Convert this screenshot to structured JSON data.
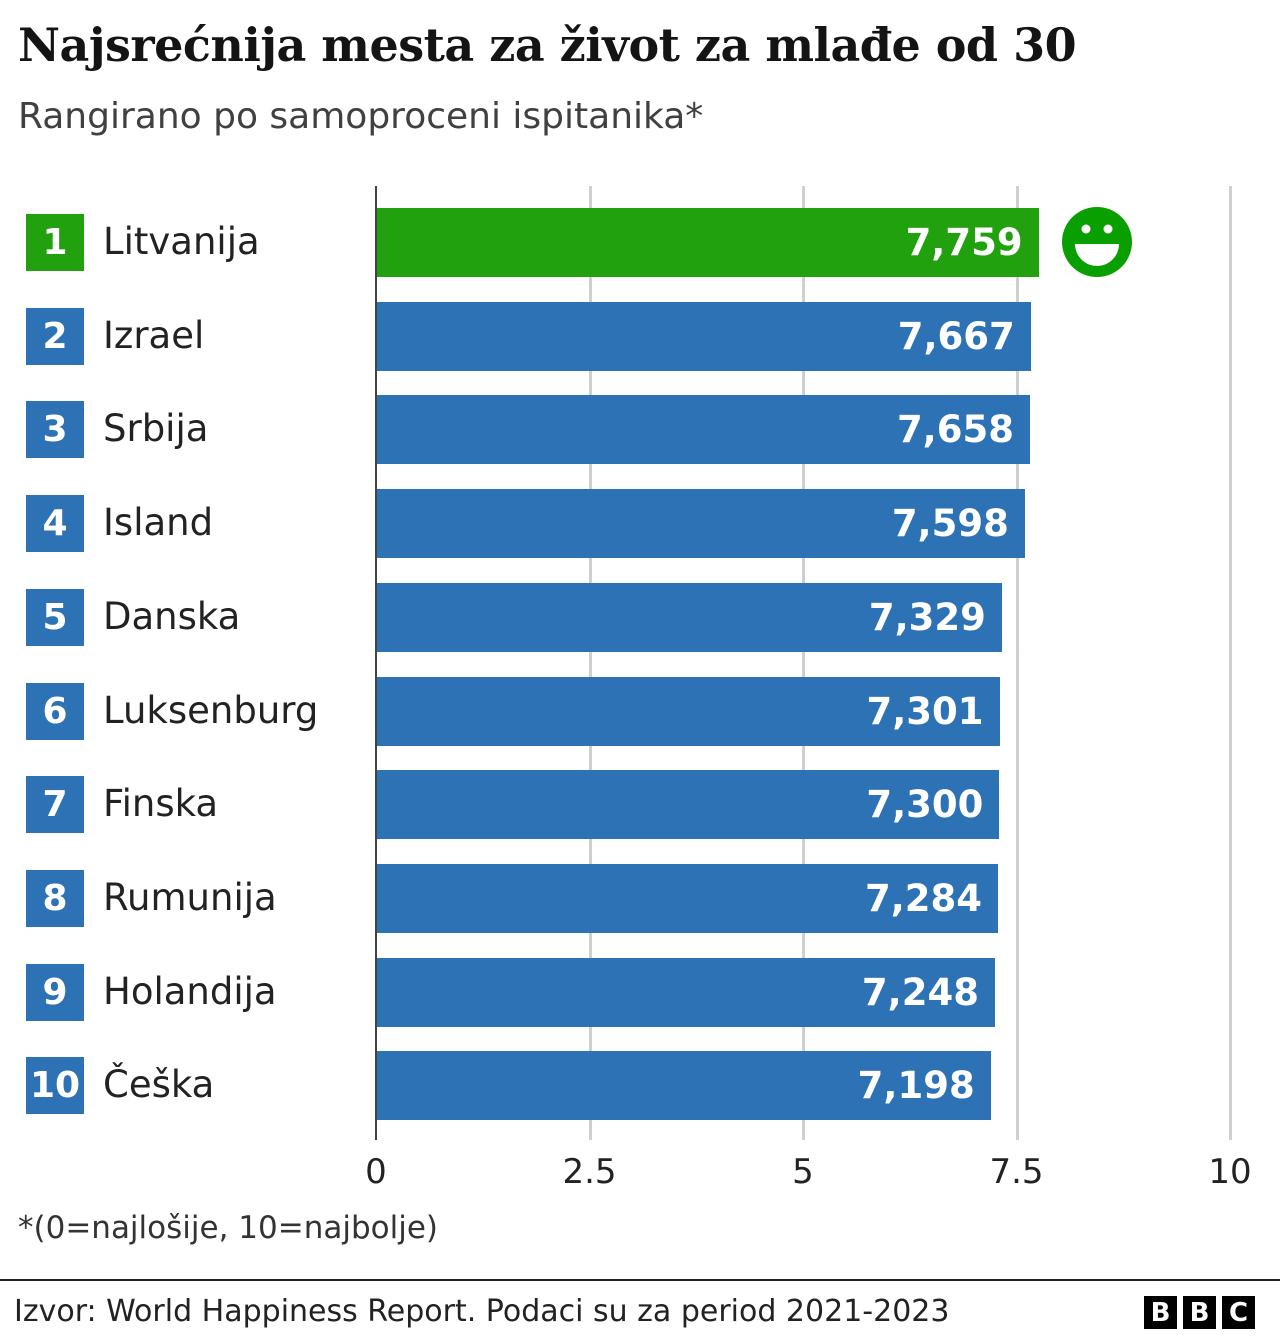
{
  "title": "Najsrećnija mesta za život za mlađe od 30",
  "subtitle": "Rangirano po samoproceni ispitanika*",
  "note": "*(0=najlošije, 10=najbolje)",
  "source": "Izvor: World Happiness Report. Podaci su za period 2021-2023",
  "logo": [
    "B",
    "B",
    "C"
  ],
  "colors": {
    "highlight": "#22a10e",
    "bar": "#2e72b6",
    "smiley": "#0a9f00"
  },
  "chart_data": {
    "type": "bar",
    "orientation": "horizontal",
    "title": "Najsrećnija mesta za život za mlađe od 30",
    "categories": [
      "Litvanija",
      "Izrael",
      "Srbija",
      "Island",
      "Danska",
      "Luksenburg",
      "Finska",
      "Rumunija",
      "Holandija",
      "Češka"
    ],
    "ranks": [
      "1",
      "2",
      "3",
      "4",
      "5",
      "6",
      "7",
      "8",
      "9",
      "10"
    ],
    "values": [
      7.759,
      7.667,
      7.658,
      7.598,
      7.329,
      7.301,
      7.3,
      7.284,
      7.248,
      7.198
    ],
    "labels": [
      "7,759",
      "7,667",
      "7,658",
      "7,598",
      "7,329",
      "7,301",
      "7,300",
      "7,284",
      "7,248",
      "7,198"
    ],
    "xlim": [
      0,
      10
    ],
    "xticks": [
      0,
      2.5,
      5,
      7.5,
      10
    ],
    "xtick_labels": [
      "0",
      "2.5",
      "5",
      "7.5",
      "10"
    ],
    "grid": true,
    "highlight_icon": "smiley-face-icon"
  }
}
